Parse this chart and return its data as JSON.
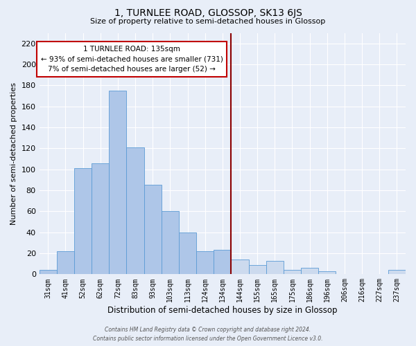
{
  "title": "1, TURNLEE ROAD, GLOSSOP, SK13 6JS",
  "subtitle": "Size of property relative to semi-detached houses in Glossop",
  "xlabel": "Distribution of semi-detached houses by size in Glossop",
  "ylabel": "Number of semi-detached properties",
  "bar_labels": [
    "31sqm",
    "41sqm",
    "52sqm",
    "62sqm",
    "72sqm",
    "83sqm",
    "93sqm",
    "103sqm",
    "113sqm",
    "124sqm",
    "134sqm",
    "144sqm",
    "155sqm",
    "165sqm",
    "175sqm",
    "186sqm",
    "196sqm",
    "206sqm",
    "216sqm",
    "227sqm",
    "237sqm"
  ],
  "bar_values": [
    4,
    22,
    101,
    106,
    175,
    121,
    85,
    60,
    40,
    22,
    23,
    14,
    9,
    13,
    4,
    6,
    3,
    0,
    0,
    0,
    4
  ],
  "bar_color_left": "#aec6e8",
  "bar_color_right": "#ccdaee",
  "bar_edge_color": "#5b9bd5",
  "property_line_color": "#8b0000",
  "property_line_idx": 10,
  "annotation_title": "1 TURNLEE ROAD: 135sqm",
  "annotation_line1": "← 93% of semi-detached houses are smaller (731)",
  "annotation_line2": "7% of semi-detached houses are larger (52) →",
  "annotation_box_color": "#ffffff",
  "annotation_box_edge": "#c00000",
  "ylim": [
    0,
    230
  ],
  "yticks": [
    0,
    20,
    40,
    60,
    80,
    100,
    120,
    140,
    160,
    180,
    200,
    220
  ],
  "background_color": "#e8eef8",
  "footer_line1": "Contains HM Land Registry data © Crown copyright and database right 2024.",
  "footer_line2": "Contains public sector information licensed under the Open Government Licence v3.0."
}
